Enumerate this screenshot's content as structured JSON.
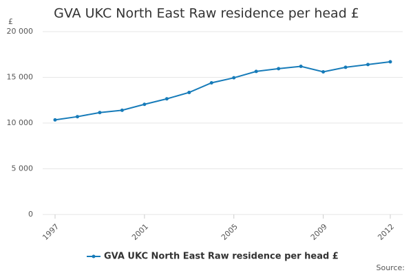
{
  "chart_data": {
    "type": "line",
    "title": "GVA UKC North East Raw residence per head £",
    "y_label": "£",
    "source": "Source:",
    "x": [
      1997,
      1998,
      1999,
      2000,
      2001,
      2002,
      2003,
      2004,
      2005,
      2006,
      2007,
      2008,
      2009,
      2010,
      2011,
      2012
    ],
    "series": [
      {
        "name": "GVA UKC North East Raw residence per head £",
        "color": "#167bb9",
        "values": [
          10350,
          10700,
          11150,
          11400,
          12050,
          12650,
          13350,
          14400,
          14950,
          15650,
          15950,
          16200,
          15600,
          16100,
          16400,
          16700
        ]
      }
    ],
    "xlim": [
      1997,
      2012
    ],
    "xticks": [
      1997,
      2001,
      2005,
      2009,
      2012
    ],
    "ylim": [
      0,
      20000
    ],
    "yticks": [
      0,
      {
        "value": 5000,
        "label": "5 000"
      },
      {
        "value": 10000,
        "label": "10 000"
      },
      {
        "value": 15000,
        "label": "15 000"
      },
      {
        "value": 20000,
        "label": "20 000"
      }
    ],
    "grid": true
  }
}
